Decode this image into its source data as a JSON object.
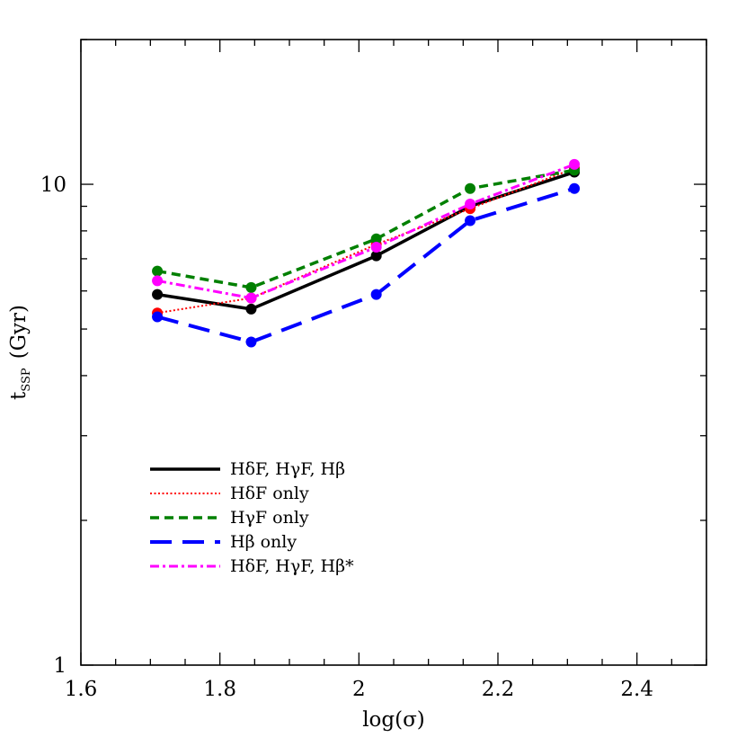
{
  "chart_data": {
    "type": "line",
    "xlabel": "log(σ)",
    "ylabel_main": "t",
    "ylabel_sub": "SSP",
    "ylabel_unit": "(Gyr)",
    "xlim": [
      1.6,
      2.5
    ],
    "ylim": [
      1,
      20
    ],
    "yscale": "log",
    "x_ticks": [
      1.6,
      1.8,
      2.0,
      2.2,
      2.4
    ],
    "x_tick_labels": [
      "1.6",
      "1.8",
      "2",
      "2.2",
      "2.4"
    ],
    "y_ticks": [
      1,
      10
    ],
    "y_tick_labels": [
      "1",
      "10"
    ],
    "legend_position": "lower-left",
    "x": [
      1.71,
      1.845,
      2.025,
      2.16,
      2.31
    ],
    "series": [
      {
        "name": "HδF, HγF, Hβ",
        "values": [
          5.9,
          5.5,
          7.1,
          9.0,
          10.6
        ],
        "color": "#000000",
        "dash": "solid"
      },
      {
        "name": "HδF only",
        "values": [
          5.4,
          5.8,
          7.5,
          8.9,
          10.8
        ],
        "color": "#ff0000",
        "dash": "dotted"
      },
      {
        "name": "HγF only",
        "values": [
          6.6,
          6.1,
          7.7,
          9.8,
          10.7
        ],
        "color": "#008000",
        "dash": "dashed"
      },
      {
        "name": "Hβ only",
        "values": [
          5.3,
          4.7,
          5.9,
          8.4,
          9.8
        ],
        "color": "#0000ff",
        "dash": "longdash"
      },
      {
        "name": "HδF, HγF, Hβ*",
        "values": [
          6.3,
          5.8,
          7.4,
          9.1,
          11.0
        ],
        "color": "#ff00ff",
        "dash": "dashdot"
      }
    ]
  }
}
